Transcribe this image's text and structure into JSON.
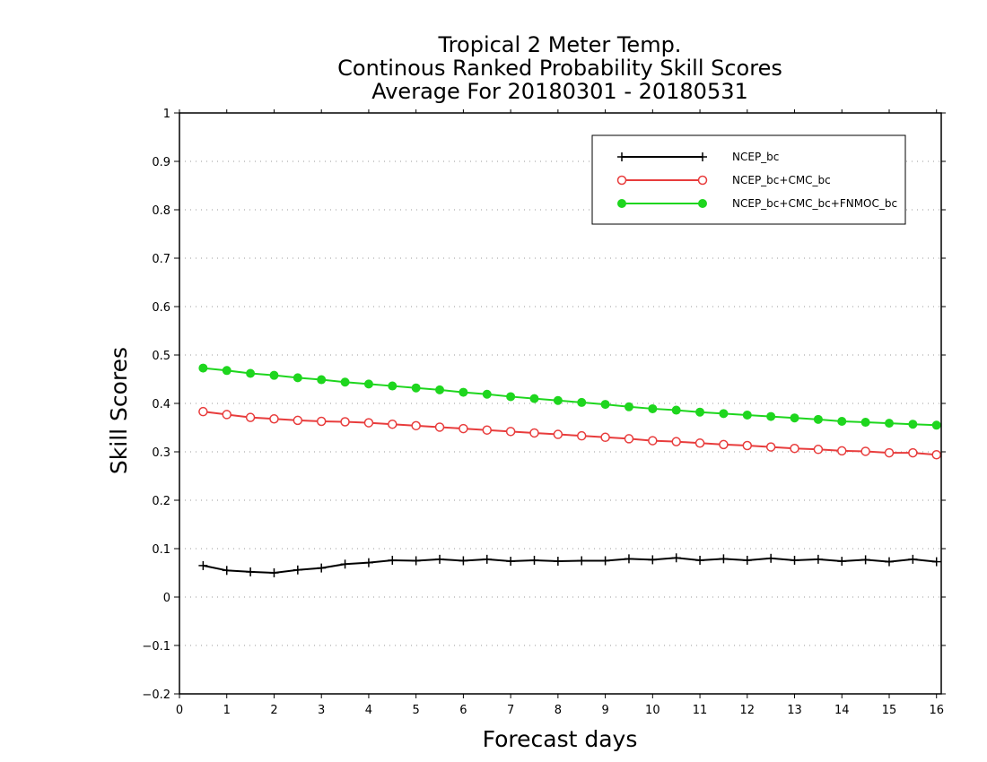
{
  "chart_data": {
    "type": "line",
    "title": [
      "Tropical 2 Meter Temp.",
      "Continous Ranked Probability Skill Scores",
      "Average For 20180301 - 20180531"
    ],
    "xlabel": "Forecast days",
    "ylabel": "Skill Scores",
    "xlim": [
      0,
      16.1
    ],
    "ylim": [
      -0.2,
      1
    ],
    "xticks": [
      0,
      1,
      2,
      3,
      4,
      5,
      6,
      7,
      8,
      9,
      10,
      11,
      12,
      13,
      14,
      15,
      16
    ],
    "xtick_labels": [
      "0",
      "1",
      "2",
      "3",
      "4",
      "5",
      "6",
      "7",
      "8",
      "9",
      "10",
      "11",
      "12",
      "13",
      "14",
      "15",
      "16"
    ],
    "yticks": [
      -0.2,
      -0.1,
      0,
      0.1,
      0.2,
      0.3,
      0.4,
      0.5,
      0.6,
      0.7,
      0.8,
      0.9,
      1
    ],
    "ytick_labels": [
      "−0.2",
      "−0.1",
      "0",
      "0.1",
      "0.2",
      "0.3",
      "0.4",
      "0.5",
      "0.6",
      "0.7",
      "0.8",
      "0.9",
      "1"
    ],
    "grid": true,
    "legend_position": "top-right",
    "x": [
      0.5,
      1,
      1.5,
      2,
      2.5,
      3,
      3.5,
      4,
      4.5,
      5,
      5.5,
      6,
      6.5,
      7,
      7.5,
      8,
      8.5,
      9,
      9.5,
      10,
      10.5,
      11,
      11.5,
      12,
      12.5,
      13,
      13.5,
      14,
      14.5,
      15,
      15.5,
      16
    ],
    "series": [
      {
        "name": "NCEP_bc",
        "color": "#000000",
        "marker": "plus",
        "values": [
          0.065,
          0.055,
          0.052,
          0.05,
          0.056,
          0.06,
          0.068,
          0.071,
          0.076,
          0.075,
          0.078,
          0.075,
          0.078,
          0.074,
          0.076,
          0.074,
          0.075,
          0.075,
          0.079,
          0.077,
          0.081,
          0.076,
          0.079,
          0.076,
          0.08,
          0.076,
          0.078,
          0.074,
          0.077,
          0.073,
          0.078,
          0.073
        ]
      },
      {
        "name": "NCEP_bc+CMC_bc",
        "color": "#e83c3c",
        "marker": "open-circle",
        "values": [
          0.383,
          0.377,
          0.371,
          0.368,
          0.365,
          0.363,
          0.362,
          0.36,
          0.357,
          0.354,
          0.351,
          0.348,
          0.345,
          0.342,
          0.339,
          0.336,
          0.333,
          0.33,
          0.327,
          0.323,
          0.321,
          0.318,
          0.315,
          0.313,
          0.31,
          0.307,
          0.305,
          0.302,
          0.301,
          0.298,
          0.298,
          0.294
        ]
      },
      {
        "name": "NCEP_bc+CMC_bc+FNMOC_bc",
        "color": "#1ed61e",
        "marker": "filled-circle",
        "values": [
          0.473,
          0.468,
          0.462,
          0.458,
          0.453,
          0.449,
          0.444,
          0.44,
          0.436,
          0.432,
          0.428,
          0.423,
          0.419,
          0.414,
          0.41,
          0.406,
          0.402,
          0.398,
          0.393,
          0.389,
          0.386,
          0.382,
          0.379,
          0.376,
          0.373,
          0.37,
          0.367,
          0.363,
          0.361,
          0.359,
          0.357,
          0.355
        ]
      }
    ]
  }
}
